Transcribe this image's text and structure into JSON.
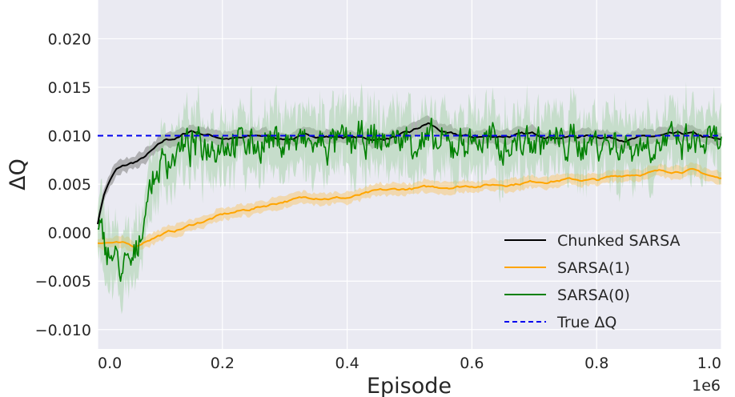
{
  "chart_data": {
    "type": "line",
    "title": "",
    "xlabel": "Episode",
    "ylabel": "ΔQ",
    "x_offset_label": "1e6",
    "xlim": [
      0,
      1.0
    ],
    "ylim": [
      -0.012,
      0.024
    ],
    "x_ticks": [
      "0.0",
      "0.2",
      "0.4",
      "0.6",
      "0.8",
      "1.0"
    ],
    "y_ticks": [
      "−0.010",
      "−0.005",
      "0.000",
      "0.005",
      "0.010",
      "0.015",
      "0.020"
    ],
    "grid": true,
    "legend_position": "lower-right",
    "series": [
      {
        "name": "Chunked SARSA",
        "color": "#000000",
        "band_color": "#7f7f7f",
        "x": [
          0,
          0.01,
          0.02,
          0.03,
          0.05,
          0.07,
          0.09,
          0.11,
          0.13,
          0.15,
          0.17,
          0.2,
          0.23,
          0.26,
          0.3,
          0.35,
          0.4,
          0.45,
          0.5,
          0.53,
          0.56,
          0.6,
          0.65,
          0.7,
          0.75,
          0.8,
          0.85,
          0.9,
          0.95,
          1.0
        ],
        "y": [
          0.001,
          0.004,
          0.0055,
          0.0065,
          0.007,
          0.0075,
          0.0085,
          0.0095,
          0.0098,
          0.0105,
          0.0102,
          0.0098,
          0.0097,
          0.01,
          0.0097,
          0.01,
          0.0099,
          0.0096,
          0.0102,
          0.0112,
          0.0101,
          0.0098,
          0.01,
          0.0101,
          0.0099,
          0.01,
          0.0097,
          0.0099,
          0.0101,
          0.0094
        ],
        "band": 0.0007
      },
      {
        "name": "SARSA(1)",
        "color": "#ffa500",
        "band_color": "#f5c878",
        "x": [
          0,
          0.02,
          0.04,
          0.06,
          0.08,
          0.1,
          0.13,
          0.16,
          0.2,
          0.25,
          0.3,
          0.35,
          0.4,
          0.45,
          0.5,
          0.55,
          0.6,
          0.65,
          0.7,
          0.75,
          0.8,
          0.85,
          0.9,
          0.95,
          1.0
        ],
        "y": [
          -0.001,
          -0.001,
          -0.0012,
          -0.0015,
          -0.0007,
          -0.0002,
          0.0003,
          0.001,
          0.0018,
          0.0025,
          0.0033,
          0.0037,
          0.0036,
          0.0042,
          0.0045,
          0.0047,
          0.0049,
          0.005,
          0.0053,
          0.0055,
          0.0054,
          0.006,
          0.0063,
          0.0065,
          0.0055
        ],
        "band": 0.0006
      },
      {
        "name": "SARSA(0)",
        "color": "#008000",
        "band_color": "#9ccf9c",
        "x": [
          0,
          0.02,
          0.04,
          0.06,
          0.08,
          0.1,
          0.13,
          0.16,
          0.2,
          0.25,
          0.3,
          0.35,
          0.4,
          0.45,
          0.5,
          0.55,
          0.6,
          0.65,
          0.7,
          0.75,
          0.8,
          0.85,
          0.9,
          0.95,
          1.0
        ],
        "y": [
          0.0,
          -0.002,
          -0.004,
          -0.003,
          0.004,
          0.007,
          0.0085,
          0.009,
          0.0095,
          0.0092,
          0.0095,
          0.009,
          0.0093,
          0.0095,
          0.0097,
          0.0088,
          0.0096,
          0.009,
          0.0095,
          0.0092,
          0.0094,
          0.009,
          0.0093,
          0.0091,
          0.0092
        ],
        "noise": 0.0018,
        "band": 0.003
      },
      {
        "name": "True ΔQ",
        "color": "#0000ee",
        "dashed": true,
        "x": [
          0,
          1.0
        ],
        "y": [
          0.01,
          0.01
        ]
      }
    ]
  }
}
